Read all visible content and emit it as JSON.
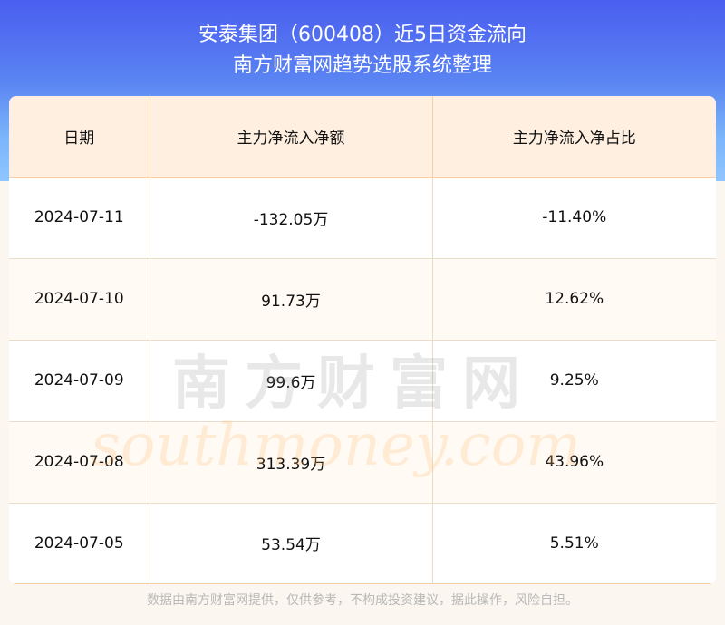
{
  "header": {
    "title_line1": "安泰集团（600408）近5日资金流向",
    "title_line2": "南方财富网趋势选股系统整理"
  },
  "table": {
    "columns": [
      "日期",
      "主力净流入净额",
      "主力净流入净占比"
    ],
    "rows": [
      {
        "date": "2024-07-11",
        "amount": "-132.05万",
        "ratio": "-11.40%"
      },
      {
        "date": "2024-07-10",
        "amount": "91.73万",
        "ratio": "12.62%"
      },
      {
        "date": "2024-07-09",
        "amount": "99.6万",
        "ratio": "9.25%"
      },
      {
        "date": "2024-07-08",
        "amount": "313.39万",
        "ratio": "43.96%"
      },
      {
        "date": "2024-07-05",
        "amount": "53.54万",
        "ratio": "5.51%"
      }
    ]
  },
  "watermark": {
    "cn": "南方财富网",
    "en": "southmoney.com"
  },
  "footer": {
    "disclaimer": "数据由南方财富网提供，仅供参考，不构成投资建议，据此操作，风险自担。"
  },
  "colors": {
    "header_bg": "#4a5ef0",
    "table_header_bg": "#ffefe0",
    "border": "#f5cfa6"
  }
}
